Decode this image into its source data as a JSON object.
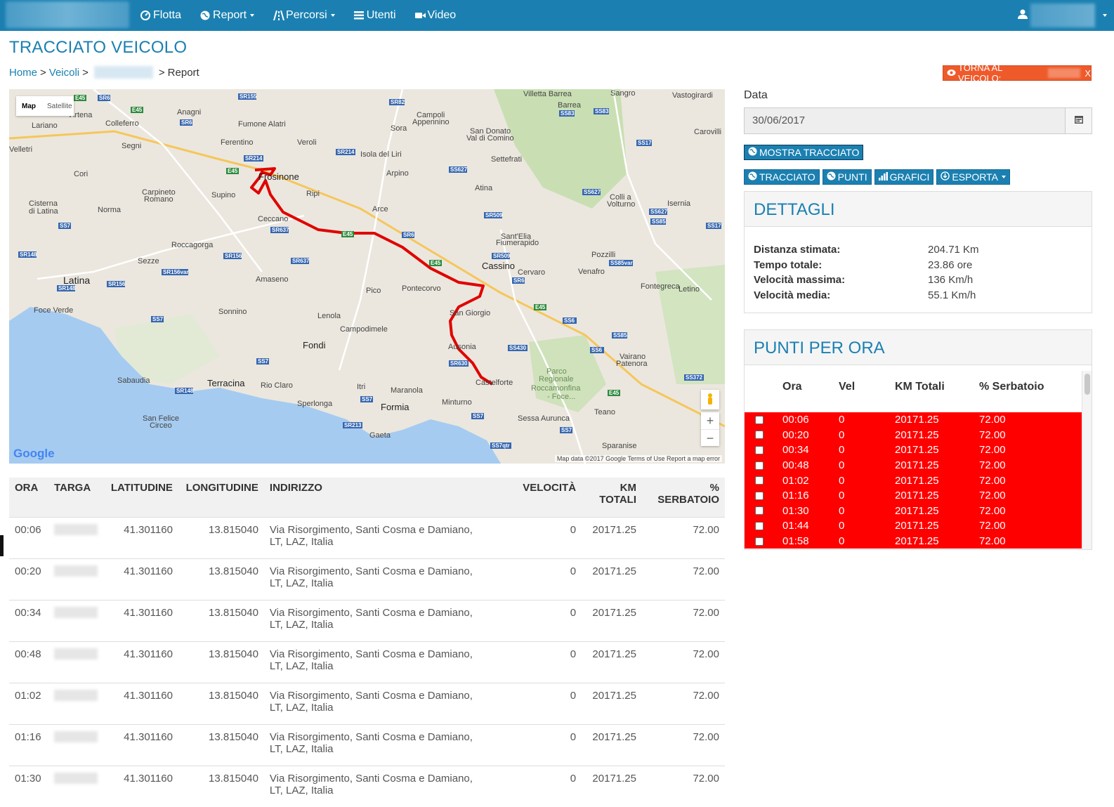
{
  "nav": {
    "items": [
      {
        "label": "Flotta",
        "icon": "dashboard-icon",
        "dropdown": false
      },
      {
        "label": "Report",
        "icon": "globe-icon",
        "dropdown": true
      },
      {
        "label": "Percorsi",
        "icon": "road-icon",
        "dropdown": true
      },
      {
        "label": "Utenti",
        "icon": "list-icon",
        "dropdown": false
      },
      {
        "label": "Video",
        "icon": "video-camera-icon",
        "dropdown": false
      }
    ],
    "user_icon": "user-icon"
  },
  "page": {
    "title": "TRACCIATO VEICOLO",
    "breadcrumb": {
      "home": "Home",
      "veicoli": "Veicoli",
      "sep": ">",
      "current": "Report"
    },
    "back_button": "TORNA AL VEICOLO:",
    "back_close": "X"
  },
  "map": {
    "toggle_map": "Map",
    "toggle_satellite": "Satellite",
    "zoom_in": "+",
    "zoom_out": "−",
    "google": "Google",
    "footer": "Map data ©2017 Google   Terms of Use   Report a map error",
    "places": [
      "Artena",
      "Anagni",
      "Lariano",
      "Colleferro",
      "Fumone",
      "Alatri",
      "Velletri",
      "Segni",
      "Ferentino",
      "Veroli",
      "Frosinone",
      "Sora",
      "Campoli Appennino",
      "Isola del Liri",
      "Arpino",
      "Cori",
      "Carpineto Romano",
      "Supino",
      "Ripi",
      "Arce",
      "Cisterna di Latina",
      "Norma",
      "Ceccano",
      "Roccagorga",
      "Sezze",
      "Latina",
      "Amaseno",
      "Pico",
      "Pontecorvo",
      "Cassino",
      "Cervaro",
      "Venafro",
      "Foce Verde",
      "Sonnino",
      "Lenola",
      "Campodimele",
      "San Giorgio a Liri",
      "Fondi",
      "Ausonia",
      "Castelforte",
      "Sabaudia",
      "Terracina",
      "Rio Claro",
      "Itri",
      "Maranola",
      "Formia",
      "Minturno",
      "Sessa Aurunca",
      "Teano",
      "Gaeta",
      "San Felice Circeo",
      "Sperlonga",
      "Fontegreca",
      "Letino",
      "Pozzilli",
      "Sant'Elia Fiumerapido",
      "Atina",
      "Settefrati",
      "Villetta Barrea",
      "Barrea",
      "Sangro",
      "Vastogirardi",
      "Carovilli",
      "San Donato Val di Comino",
      "Colli a Volturno",
      "Isernia",
      "Vairano Patenora",
      "Sparanise",
      "Parco Regionale Roccamonfina - Foce..."
    ],
    "roads": [
      "E45",
      "SR6",
      "SR155",
      "SR82",
      "SR214",
      "SS627",
      "SS7",
      "SR148",
      "SR156",
      "SR637",
      "SR509",
      "SR630",
      "SS430",
      "SS372",
      "SS85",
      "SS17",
      "SS158",
      "SR213",
      "SS7qtr"
    ]
  },
  "main_table": {
    "headers": [
      "ORA",
      "TARGA",
      "LATITUDINE",
      "LONGITUDINE",
      "INDIRIZZO",
      "VELOCITÀ",
      "KM TOTALI",
      "% SERBATOIO"
    ],
    "rows": [
      {
        "ora": "00:06",
        "lat": "41.301160",
        "lon": "13.815040",
        "addr": "Via Risorgimento, Santi Cosma e Damiano, LT, LAZ, Italia",
        "vel": "0",
        "km": "20171.25",
        "serb": "72.00"
      },
      {
        "ora": "00:20",
        "lat": "41.301160",
        "lon": "13.815040",
        "addr": "Via Risorgimento, Santi Cosma e Damiano, LT, LAZ, Italia",
        "vel": "0",
        "km": "20171.25",
        "serb": "72.00"
      },
      {
        "ora": "00:34",
        "lat": "41.301160",
        "lon": "13.815040",
        "addr": "Via Risorgimento, Santi Cosma e Damiano, LT, LAZ, Italia",
        "vel": "0",
        "km": "20171.25",
        "serb": "72.00"
      },
      {
        "ora": "00:48",
        "lat": "41.301160",
        "lon": "13.815040",
        "addr": "Via Risorgimento, Santi Cosma e Damiano, LT, LAZ, Italia",
        "vel": "0",
        "km": "20171.25",
        "serb": "72.00"
      },
      {
        "ora": "01:02",
        "lat": "41.301160",
        "lon": "13.815040",
        "addr": "Via Risorgimento, Santi Cosma e Damiano, LT, LAZ, Italia",
        "vel": "0",
        "km": "20171.25",
        "serb": "72.00"
      },
      {
        "ora": "01:16",
        "lat": "41.301160",
        "lon": "13.815040",
        "addr": "Via Risorgimento, Santi Cosma e Damiano, LT, LAZ, Italia",
        "vel": "0",
        "km": "20171.25",
        "serb": "72.00"
      },
      {
        "ora": "01:30",
        "lat": "41.301160",
        "lon": "13.815040",
        "addr": "Via Risorgimento, Santi Cosma e Damiano, LT, LAZ, Italia",
        "vel": "0",
        "km": "20171.25",
        "serb": "72.00"
      }
    ]
  },
  "sidebar": {
    "date_label": "Data",
    "date_value": "30/06/2017",
    "show_button": "MOSTRA TRACCIATO",
    "buttons": [
      "TRACCIATO",
      "PUNTI",
      "GRAFICI",
      "ESPORTA"
    ],
    "details_title": "DETTAGLI",
    "details": [
      {
        "k": "Distanza stimata:",
        "v": "204.71 Km"
      },
      {
        "k": "Tempo totale:",
        "v": "23.86 ore"
      },
      {
        "k": "Velocità massima:",
        "v": "136 Km/h"
      },
      {
        "k": "Velocità media:",
        "v": "55.1 Km/h"
      }
    ],
    "points_title": "PUNTI PER ORA",
    "points_headers": [
      "Ora",
      "Vel",
      "KM Totali",
      "% Serbatoio"
    ],
    "points": [
      {
        "ora": "00:06",
        "vel": "0",
        "km": "20171.25",
        "serb": "72.00"
      },
      {
        "ora": "00:20",
        "vel": "0",
        "km": "20171.25",
        "serb": "72.00"
      },
      {
        "ora": "00:34",
        "vel": "0",
        "km": "20171.25",
        "serb": "72.00"
      },
      {
        "ora": "00:48",
        "vel": "0",
        "km": "20171.25",
        "serb": "72.00"
      },
      {
        "ora": "01:02",
        "vel": "0",
        "km": "20171.25",
        "serb": "72.00"
      },
      {
        "ora": "01:16",
        "vel": "0",
        "km": "20171.25",
        "serb": "72.00"
      },
      {
        "ora": "01:30",
        "vel": "0",
        "km": "20171.25",
        "serb": "72.00"
      },
      {
        "ora": "01:44",
        "vel": "0",
        "km": "20171.25",
        "serb": "72.00"
      },
      {
        "ora": "01:58",
        "vel": "0",
        "km": "20171.25",
        "serb": "72.00"
      }
    ],
    "row_color": "#ff0000"
  },
  "colors": {
    "accent": "#1b80b1",
    "back_button": "#ef5a2b",
    "route": "#e00000"
  }
}
